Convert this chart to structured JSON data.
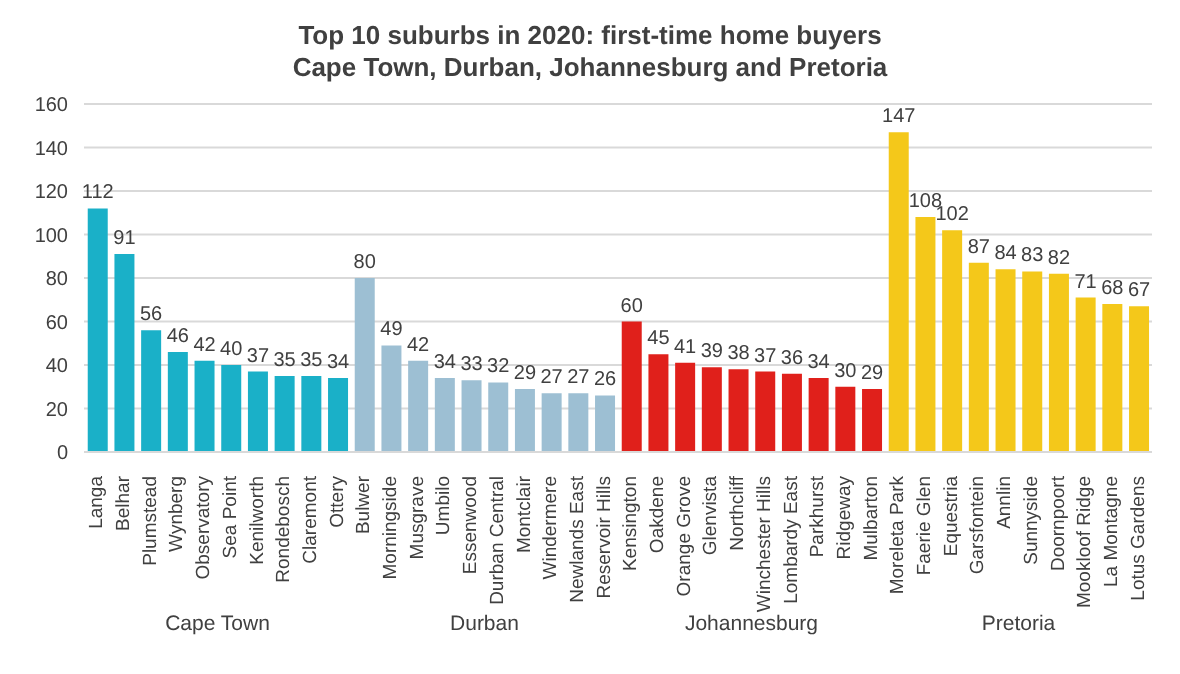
{
  "chart_data": {
    "type": "bar",
    "title": "Top 10 suburbs in 2020: first-time home buyers\nCape Town, Durban, Johannesburg and Pretoria",
    "categories": [
      "Langa",
      "Belhar",
      "Plumstead",
      "Wynberg",
      "Observatory",
      "Sea Point",
      "Kenilworth",
      "Rondebosch",
      "Claremont",
      "Ottery",
      "Bulwer",
      "Morningside",
      "Musgrave",
      "Umbilo",
      "Essenwood",
      "Durban Central",
      "Montclair",
      "Windermere",
      "Newlands East",
      "Reservoir Hills",
      "Kensington",
      "Oakdene",
      "Orange Grove",
      "Glenvista",
      "Northcliff",
      "Winchester Hills",
      "Lombardy East",
      "Parkhurst",
      "Ridgeway",
      "Mulbarton",
      "Moreleta Park",
      "Faerie Glen",
      "Equestria",
      "Garsfontein",
      "Annlin",
      "Sunnyside",
      "Doornpoort",
      "Mookloof Ridge",
      "La Montagne",
      "Lotus Gardens"
    ],
    "values": [
      112,
      91,
      56,
      46,
      42,
      40,
      37,
      35,
      35,
      34,
      80,
      49,
      42,
      34,
      33,
      32,
      29,
      27,
      27,
      26,
      60,
      45,
      41,
      39,
      38,
      37,
      36,
      34,
      30,
      29,
      147,
      108,
      102,
      87,
      84,
      83,
      82,
      71,
      68,
      67
    ],
    "colors": [
      "#1ab0c8",
      "#1ab0c8",
      "#1ab0c8",
      "#1ab0c8",
      "#1ab0c8",
      "#1ab0c8",
      "#1ab0c8",
      "#1ab0c8",
      "#1ab0c8",
      "#1ab0c8",
      "#9dbfd3",
      "#9dbfd3",
      "#9dbfd3",
      "#9dbfd3",
      "#9dbfd3",
      "#9dbfd3",
      "#9dbfd3",
      "#9dbfd3",
      "#9dbfd3",
      "#9dbfd3",
      "#e0201b",
      "#e0201b",
      "#e0201b",
      "#e0201b",
      "#e0201b",
      "#e0201b",
      "#e0201b",
      "#e0201b",
      "#e0201b",
      "#e0201b",
      "#f4c81a",
      "#f4c81a",
      "#f4c81a",
      "#f4c81a",
      "#f4c81a",
      "#f4c81a",
      "#f4c81a",
      "#f4c81a",
      "#f4c81a",
      "#f4c81a"
    ],
    "annotations": [
      "Cape Town",
      "Durban",
      "Johannesburg",
      "Pretoria"
    ],
    "ylim": [
      0,
      160
    ],
    "yticks": [
      0,
      20,
      40,
      60,
      80,
      100,
      120,
      140,
      160
    ],
    "grid": "y",
    "data_labels": true
  }
}
